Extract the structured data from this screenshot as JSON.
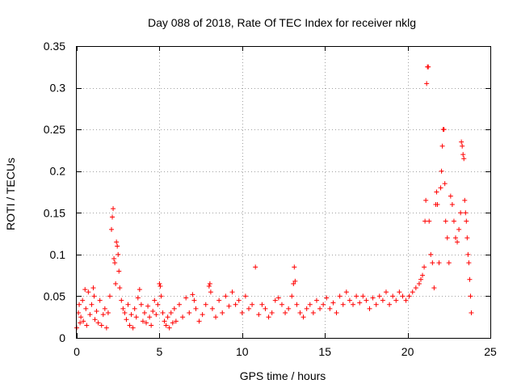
{
  "chart_data": {
    "type": "scatter",
    "title": "Day 088 of 2018, Rate Of TEC Index for receiver nklg",
    "xlabel": "GPS time / hours",
    "ylabel": "ROTI / TECUs",
    "xlim": [
      0,
      25
    ],
    "ylim": [
      0,
      0.35
    ],
    "xticks": [
      0,
      5,
      10,
      15,
      20,
      25
    ],
    "xtick_labels": [
      "0",
      "5",
      "10",
      "15",
      "20",
      "25"
    ],
    "yticks": [
      0,
      0.05,
      0.1,
      0.15,
      0.2,
      0.25,
      0.3,
      0.35
    ],
    "ytick_labels": [
      "0",
      "0.05",
      "0.1",
      "0.15",
      "0.2",
      "0.25",
      "0.3",
      "0.35"
    ],
    "grid": true,
    "marker": "+",
    "color": "#ff0000",
    "series": [
      {
        "name": "ROTI",
        "points": [
          [
            0.0,
            0.012
          ],
          [
            0.1,
            0.03
          ],
          [
            0.15,
            0.04
          ],
          [
            0.2,
            0.018
          ],
          [
            0.25,
            0.025
          ],
          [
            0.35,
            0.045
          ],
          [
            0.4,
            0.02
          ],
          [
            0.5,
            0.058
          ],
          [
            0.55,
            0.035
          ],
          [
            0.6,
            0.015
          ],
          [
            0.7,
            0.055
          ],
          [
            0.8,
            0.028
          ],
          [
            0.9,
            0.04
          ],
          [
            1.0,
            0.06
          ],
          [
            1.05,
            0.05
          ],
          [
            1.1,
            0.022
          ],
          [
            1.2,
            0.032
          ],
          [
            1.3,
            0.018
          ],
          [
            1.4,
            0.045
          ],
          [
            1.5,
            0.015
          ],
          [
            1.6,
            0.028
          ],
          [
            1.7,
            0.035
          ],
          [
            1.8,
            0.012
          ],
          [
            1.9,
            0.03
          ],
          [
            2.0,
            0.05
          ],
          [
            2.1,
            0.13
          ],
          [
            2.15,
            0.145
          ],
          [
            2.2,
            0.155
          ],
          [
            2.25,
            0.095
          ],
          [
            2.3,
            0.09
          ],
          [
            2.35,
            0.065
          ],
          [
            2.4,
            0.115
          ],
          [
            2.45,
            0.11
          ],
          [
            2.5,
            0.1
          ],
          [
            2.55,
            0.08
          ],
          [
            2.6,
            0.06
          ],
          [
            2.7,
            0.045
          ],
          [
            2.8,
            0.035
          ],
          [
            2.9,
            0.03
          ],
          [
            3.0,
            0.022
          ],
          [
            3.1,
            0.04
          ],
          [
            3.2,
            0.015
          ],
          [
            3.3,
            0.028
          ],
          [
            3.4,
            0.012
          ],
          [
            3.5,
            0.035
          ],
          [
            3.6,
            0.025
          ],
          [
            3.7,
            0.048
          ],
          [
            3.8,
            0.058
          ],
          [
            3.9,
            0.04
          ],
          [
            4.0,
            0.02
          ],
          [
            4.1,
            0.03
          ],
          [
            4.2,
            0.018
          ],
          [
            4.3,
            0.038
          ],
          [
            4.4,
            0.025
          ],
          [
            4.5,
            0.015
          ],
          [
            4.6,
            0.032
          ],
          [
            4.7,
            0.045
          ],
          [
            4.8,
            0.028
          ],
          [
            4.9,
            0.04
          ],
          [
            5.0,
            0.065
          ],
          [
            5.05,
            0.062
          ],
          [
            5.1,
            0.05
          ],
          [
            5.2,
            0.03
          ],
          [
            5.3,
            0.02
          ],
          [
            5.4,
            0.015
          ],
          [
            5.5,
            0.025
          ],
          [
            5.6,
            0.012
          ],
          [
            5.7,
            0.03
          ],
          [
            5.8,
            0.018
          ],
          [
            5.9,
            0.035
          ],
          [
            6.0,
            0.02
          ],
          [
            6.2,
            0.04
          ],
          [
            6.4,
            0.025
          ],
          [
            6.6,
            0.048
          ],
          [
            6.8,
            0.03
          ],
          [
            7.0,
            0.052
          ],
          [
            7.1,
            0.045
          ],
          [
            7.2,
            0.035
          ],
          [
            7.4,
            0.02
          ],
          [
            7.6,
            0.028
          ],
          [
            7.8,
            0.04
          ],
          [
            8.0,
            0.062
          ],
          [
            8.05,
            0.065
          ],
          [
            8.1,
            0.055
          ],
          [
            8.2,
            0.035
          ],
          [
            8.4,
            0.025
          ],
          [
            8.6,
            0.045
          ],
          [
            8.8,
            0.03
          ],
          [
            9.0,
            0.05
          ],
          [
            9.2,
            0.038
          ],
          [
            9.4,
            0.055
          ],
          [
            9.6,
            0.04
          ],
          [
            9.8,
            0.045
          ],
          [
            10.0,
            0.03
          ],
          [
            10.2,
            0.05
          ],
          [
            10.4,
            0.035
          ],
          [
            10.6,
            0.04
          ],
          [
            10.8,
            0.085
          ],
          [
            11.0,
            0.028
          ],
          [
            11.2,
            0.04
          ],
          [
            11.4,
            0.035
          ],
          [
            11.6,
            0.025
          ],
          [
            11.8,
            0.03
          ],
          [
            12.0,
            0.045
          ],
          [
            12.2,
            0.048
          ],
          [
            12.4,
            0.04
          ],
          [
            12.6,
            0.03
          ],
          [
            12.8,
            0.035
          ],
          [
            13.0,
            0.05
          ],
          [
            13.1,
            0.065
          ],
          [
            13.15,
            0.085
          ],
          [
            13.2,
            0.068
          ],
          [
            13.3,
            0.04
          ],
          [
            13.5,
            0.03
          ],
          [
            13.7,
            0.025
          ],
          [
            13.9,
            0.035
          ],
          [
            14.1,
            0.04
          ],
          [
            14.3,
            0.03
          ],
          [
            14.5,
            0.045
          ],
          [
            14.7,
            0.035
          ],
          [
            14.9,
            0.04
          ],
          [
            15.1,
            0.048
          ],
          [
            15.3,
            0.035
          ],
          [
            15.5,
            0.042
          ],
          [
            15.7,
            0.03
          ],
          [
            15.9,
            0.05
          ],
          [
            16.1,
            0.04
          ],
          [
            16.3,
            0.055
          ],
          [
            16.5,
            0.045
          ],
          [
            16.7,
            0.04
          ],
          [
            16.9,
            0.05
          ],
          [
            17.1,
            0.042
          ],
          [
            17.3,
            0.05
          ],
          [
            17.5,
            0.045
          ],
          [
            17.7,
            0.035
          ],
          [
            17.9,
            0.048
          ],
          [
            18.1,
            0.04
          ],
          [
            18.3,
            0.05
          ],
          [
            18.5,
            0.045
          ],
          [
            18.7,
            0.055
          ],
          [
            18.9,
            0.04
          ],
          [
            19.1,
            0.05
          ],
          [
            19.3,
            0.045
          ],
          [
            19.5,
            0.055
          ],
          [
            19.7,
            0.05
          ],
          [
            19.9,
            0.045
          ],
          [
            20.1,
            0.05
          ],
          [
            20.3,
            0.055
          ],
          [
            20.5,
            0.06
          ],
          [
            20.7,
            0.065
          ],
          [
            20.8,
            0.07
          ],
          [
            20.9,
            0.075
          ],
          [
            21.0,
            0.085
          ],
          [
            21.05,
            0.14
          ],
          [
            21.1,
            0.165
          ],
          [
            21.15,
            0.305
          ],
          [
            21.2,
            0.325
          ],
          [
            21.25,
            0.325
          ],
          [
            21.3,
            0.14
          ],
          [
            21.4,
            0.1
          ],
          [
            21.5,
            0.09
          ],
          [
            21.6,
            0.06
          ],
          [
            21.7,
            0.16
          ],
          [
            21.75,
            0.175
          ],
          [
            21.8,
            0.16
          ],
          [
            21.9,
            0.09
          ],
          [
            22.0,
            0.18
          ],
          [
            22.05,
            0.2
          ],
          [
            22.1,
            0.23
          ],
          [
            22.15,
            0.25
          ],
          [
            22.2,
            0.25
          ],
          [
            22.25,
            0.185
          ],
          [
            22.3,
            0.14
          ],
          [
            22.4,
            0.12
          ],
          [
            22.5,
            0.09
          ],
          [
            22.6,
            0.17
          ],
          [
            22.7,
            0.16
          ],
          [
            22.8,
            0.14
          ],
          [
            22.9,
            0.12
          ],
          [
            23.0,
            0.115
          ],
          [
            23.1,
            0.13
          ],
          [
            23.2,
            0.15
          ],
          [
            23.25,
            0.235
          ],
          [
            23.3,
            0.23
          ],
          [
            23.35,
            0.22
          ],
          [
            23.4,
            0.215
          ],
          [
            23.45,
            0.165
          ],
          [
            23.5,
            0.15
          ],
          [
            23.55,
            0.14
          ],
          [
            23.6,
            0.12
          ],
          [
            23.65,
            0.1
          ],
          [
            23.7,
            0.09
          ],
          [
            23.75,
            0.07
          ],
          [
            23.8,
            0.05
          ],
          [
            23.85,
            0.03
          ]
        ]
      }
    ]
  }
}
